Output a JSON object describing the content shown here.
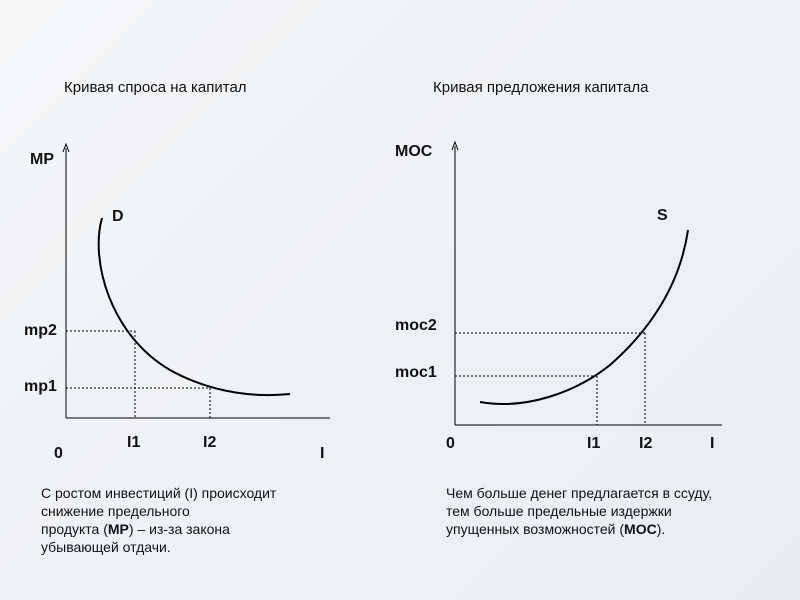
{
  "left_panel": {
    "title": "Кривая спроса на капитал",
    "y_axis_label": "MP",
    "x_axis_label": "I",
    "origin_label": "0",
    "curve_label": "D",
    "y_ticks": [
      "mp2",
      "mp1"
    ],
    "x_ticks": [
      "I1",
      "I2"
    ],
    "caption": {
      "line1_pre": "С ростом инвестиций (I) происходит",
      "line2": "снижение предельного",
      "line3_pre": "продукта (",
      "line3_bold": "MP",
      "line3_post": ") – из-за закона",
      "line4": "убывающей отдачи."
    }
  },
  "right_panel": {
    "title": "Кривая предложения капитала",
    "y_axis_label": "MOC",
    "x_axis_label": "I",
    "origin_label": "0",
    "curve_label": "S",
    "y_ticks": [
      "moc2",
      "moc1"
    ],
    "x_ticks": [
      "I1",
      "I2"
    ],
    "caption": {
      "line1": "Чем больше денег предлагается в ссуду,",
      "line2": "тем больше предельные издержки",
      "line3_pre": "упущенных возможностей (",
      "line3_bold": "MOC",
      "line3_post": ")."
    }
  }
}
